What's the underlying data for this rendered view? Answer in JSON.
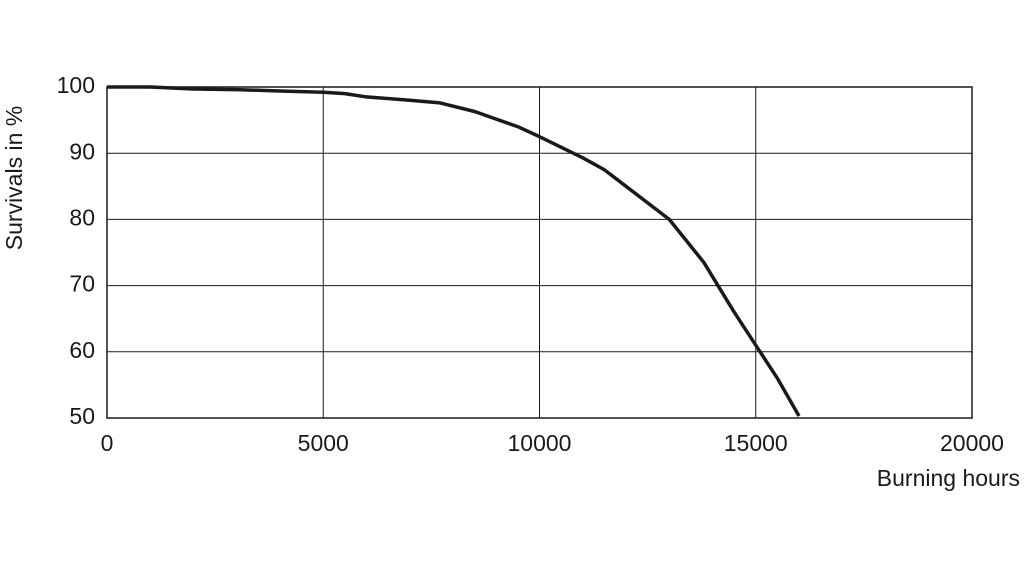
{
  "chart_data": {
    "type": "line",
    "x_label": "Burning hours",
    "y_label": "Survivals in %",
    "x": [
      0,
      1000,
      2000,
      3000,
      4000,
      5000,
      5500,
      6000,
      7000,
      7700,
      8500,
      9500,
      10000,
      11000,
      11500,
      12000,
      13000,
      13800,
      14500,
      15000,
      15500,
      16000
    ],
    "series": [
      {
        "color": "#1a1a1a",
        "values": [
          100,
          100,
          99.7,
          99.6,
          99.4,
          99.2,
          99.0,
          98.5,
          98.0,
          97.6,
          96.3,
          94.0,
          92.5,
          89.3,
          87.5,
          85.0,
          80.0,
          73.5,
          66.0,
          61.0,
          56.0,
          50.3
        ]
      }
    ],
    "xlim": [
      0,
      20000
    ],
    "ylim": [
      50,
      100
    ],
    "xticks": [
      0,
      5000,
      10000,
      15000,
      20000
    ],
    "yticks": [
      50,
      60,
      70,
      80,
      90,
      100
    ],
    "grid": true
  }
}
